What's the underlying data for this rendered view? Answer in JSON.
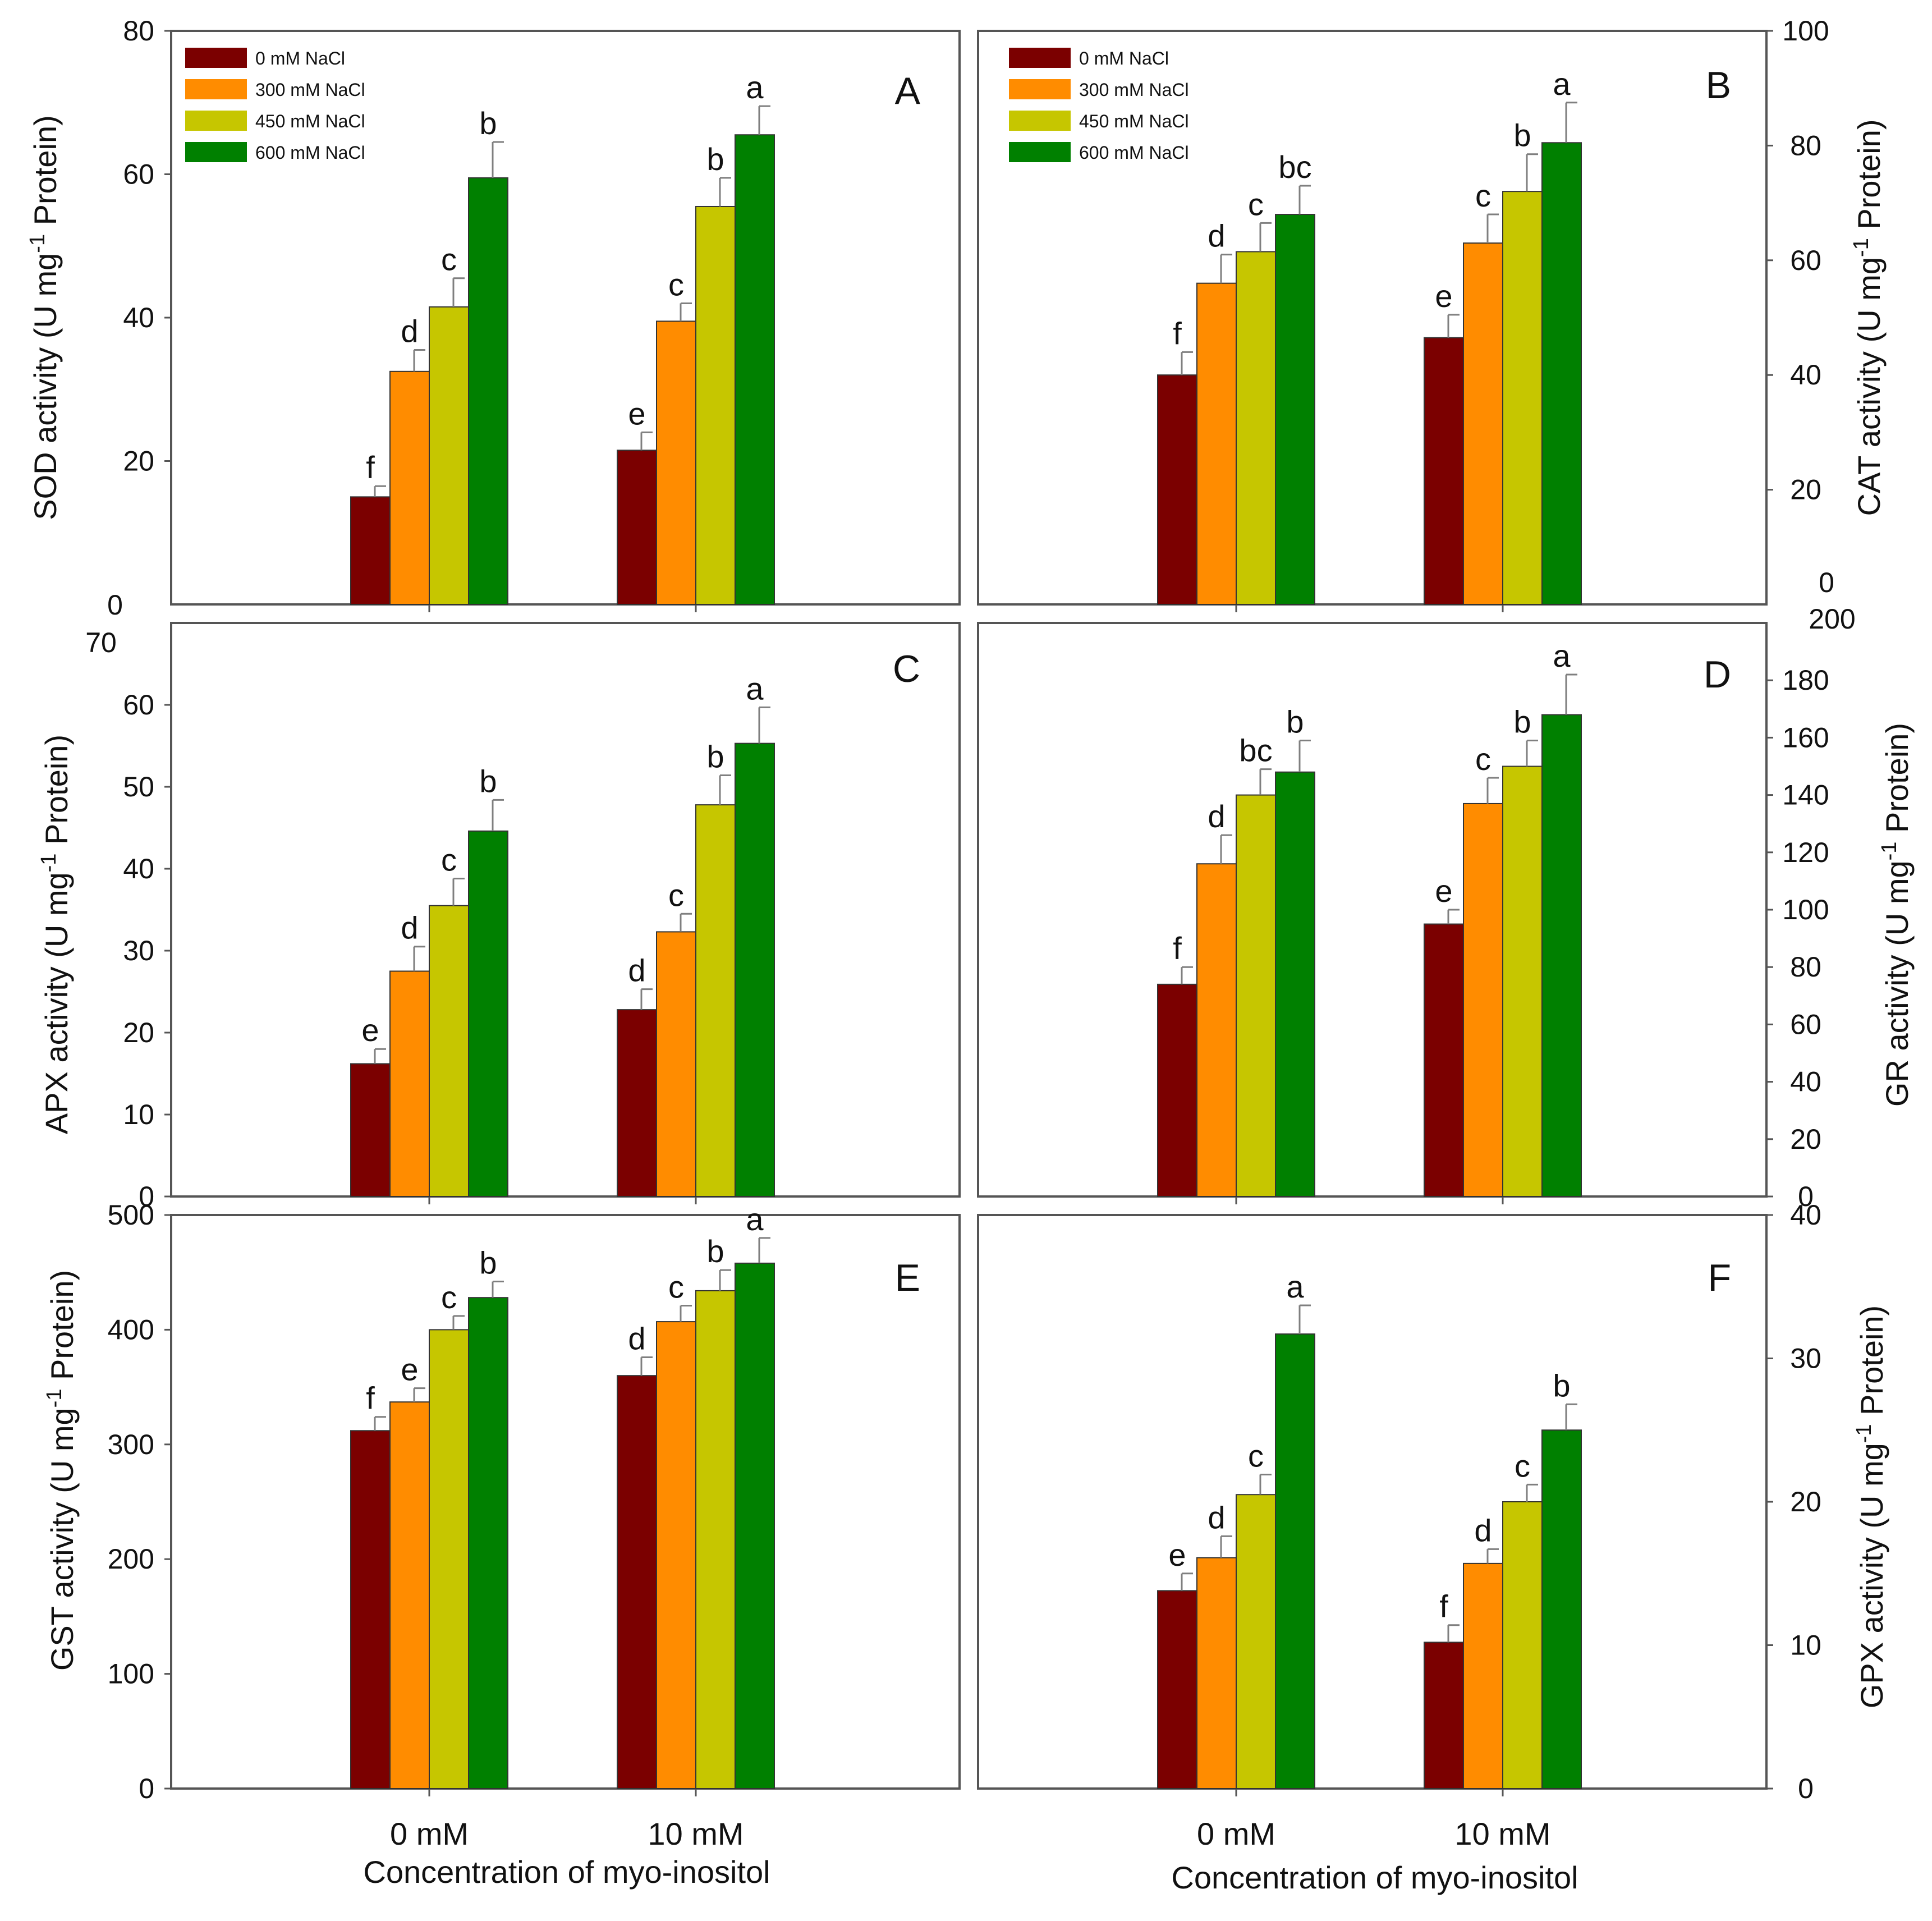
{
  "colors": {
    "series": [
      "#7b0000",
      "#ff8c00",
      "#c6c600",
      "#008000"
    ],
    "frame": "#555555",
    "error_bar": "#7f7f7f"
  },
  "chart_data": [
    {
      "type": "bar",
      "panel": "A",
      "ylabel_prefix": "SOD activity (U mg",
      "ylabel_sup": "-1",
      "ylabel_suffix": " Protein)",
      "ylim": [
        0,
        80
      ],
      "yticks": [
        20,
        40,
        60,
        80
      ],
      "ytick_labels": [
        "20",
        "40",
        "60",
        "80"
      ],
      "axis_side": "left",
      "categories": [
        "0 mM",
        "10 mM"
      ],
      "series": [
        {
          "name": "0 mM NaCl",
          "values": [
            15,
            21.5
          ],
          "errors": [
            1.5,
            2.5
          ],
          "letters": [
            "f",
            "e"
          ]
        },
        {
          "name": "300 mM NaCl",
          "values": [
            32.5,
            39.5
          ],
          "errors": [
            3,
            2.5
          ],
          "letters": [
            "d",
            "c"
          ]
        },
        {
          "name": "450 mM NaCl",
          "values": [
            41.5,
            55.5
          ],
          "errors": [
            4,
            4
          ],
          "letters": [
            "c",
            "b"
          ]
        },
        {
          "name": "600 mM NaCl",
          "values": [
            59.5,
            65.5
          ],
          "errors": [
            5,
            4
          ],
          "letters": [
            "b",
            "a"
          ]
        }
      ],
      "legend": [
        "0 mM NaCl",
        "300 mM NaCl",
        "450 mM NaCl",
        "600 mM NaCl"
      ]
    },
    {
      "type": "bar",
      "panel": "B",
      "ylabel_prefix": "CAT activity (U mg",
      "ylabel_sup": "-1",
      "ylabel_suffix": " Protein)",
      "ylim": [
        0,
        100
      ],
      "yticks": [
        20,
        40,
        60,
        80,
        100
      ],
      "ytick_labels": [
        "20",
        "40",
        "60",
        "80",
        "100"
      ],
      "axis_side": "right",
      "categories": [
        "0 mM",
        "10 mM"
      ],
      "series": [
        {
          "name": "0 mM NaCl",
          "values": [
            40,
            46.5
          ],
          "errors": [
            4,
            4
          ],
          "letters": [
            "f",
            "e"
          ]
        },
        {
          "name": "300 mM NaCl",
          "values": [
            56,
            63
          ],
          "errors": [
            5,
            5
          ],
          "letters": [
            "d",
            "c"
          ]
        },
        {
          "name": "450 mM NaCl",
          "values": [
            61.5,
            72
          ],
          "errors": [
            5,
            6.5
          ],
          "letters": [
            "c",
            "b"
          ]
        },
        {
          "name": "600 mM NaCl",
          "values": [
            68,
            80.5
          ],
          "errors": [
            5,
            7
          ],
          "letters": [
            "bc",
            "a"
          ]
        }
      ],
      "legend": [
        "0 mM NaCl",
        "300 mM NaCl",
        "450 mM NaCl",
        "600 mM NaCl"
      ]
    },
    {
      "type": "bar",
      "panel": "C",
      "ylabel_prefix": "APX activity (U mg",
      "ylabel_sup": "-1",
      "ylabel_suffix": " Protein)",
      "ylim": [
        0,
        70
      ],
      "yticks": [
        0,
        10,
        20,
        30,
        40,
        50,
        60
      ],
      "ytick_labels": [
        "0",
        "10",
        "20",
        "30",
        "40",
        "50",
        "60"
      ],
      "axis_side": "left",
      "categories": [
        "0 mM",
        "10 mM"
      ],
      "series": [
        {
          "name": "0 mM NaCl",
          "values": [
            16.2,
            22.8
          ],
          "errors": [
            1.8,
            2.5
          ],
          "letters": [
            "e",
            "d"
          ]
        },
        {
          "name": "300 mM NaCl",
          "values": [
            27.5,
            32.3
          ],
          "errors": [
            3,
            2.2
          ],
          "letters": [
            "d",
            "c"
          ]
        },
        {
          "name": "450 mM NaCl",
          "values": [
            35.5,
            47.8
          ],
          "errors": [
            3.3,
            3.6
          ],
          "letters": [
            "c",
            "b"
          ]
        },
        {
          "name": "600 mM NaCl",
          "values": [
            44.6,
            55.3
          ],
          "errors": [
            3.8,
            4.4
          ],
          "letters": [
            "b",
            "a"
          ]
        }
      ]
    },
    {
      "type": "bar",
      "panel": "D",
      "ylabel_prefix": "GR activity (U mg",
      "ylabel_sup": "-1",
      "ylabel_suffix": " Protein)",
      "ylim": [
        0,
        200
      ],
      "yticks": [
        0,
        20,
        40,
        60,
        80,
        100,
        120,
        140,
        160,
        180
      ],
      "ytick_labels": [
        "0",
        "20",
        "40",
        "60",
        "80",
        "100",
        "120",
        "140",
        "160",
        "180"
      ],
      "axis_side": "right",
      "categories": [
        "0 mM",
        "10 mM"
      ],
      "series": [
        {
          "name": "0 mM NaCl",
          "values": [
            74,
            95
          ],
          "errors": [
            6,
            5
          ],
          "letters": [
            "f",
            "e"
          ]
        },
        {
          "name": "300 mM NaCl",
          "values": [
            116,
            137
          ],
          "errors": [
            10,
            9
          ],
          "letters": [
            "d",
            "c"
          ]
        },
        {
          "name": "450 mM NaCl",
          "values": [
            140,
            150
          ],
          "errors": [
            9,
            9
          ],
          "letters": [
            "bc",
            "b"
          ]
        },
        {
          "name": "600 mM NaCl",
          "values": [
            148,
            168
          ],
          "errors": [
            11,
            14
          ],
          "letters": [
            "b",
            "a"
          ]
        }
      ]
    },
    {
      "type": "bar",
      "panel": "E",
      "ylabel_prefix": "GST activity (U mg",
      "ylabel_sup": "-1",
      "ylabel_suffix": " Protein)",
      "ylim": [
        0,
        500
      ],
      "yticks": [
        0,
        100,
        200,
        300,
        400,
        500
      ],
      "ytick_labels": [
        "0",
        "100",
        "200",
        "300",
        "400",
        "500"
      ],
      "axis_side": "left",
      "categories": [
        "0 mM",
        "10 mM"
      ],
      "xlabel": "Concentration of myo-inositol",
      "series": [
        {
          "name": "0 mM NaCl",
          "values": [
            312,
            360
          ],
          "errors": [
            12,
            16
          ],
          "letters": [
            "f",
            "d"
          ]
        },
        {
          "name": "300 mM NaCl",
          "values": [
            337,
            407
          ],
          "errors": [
            12,
            14
          ],
          "letters": [
            "e",
            "c"
          ]
        },
        {
          "name": "450 mM NaCl",
          "values": [
            400,
            434
          ],
          "errors": [
            12,
            18
          ],
          "letters": [
            "c",
            "b"
          ]
        },
        {
          "name": "600 mM NaCl",
          "values": [
            428,
            458
          ],
          "errors": [
            14,
            22
          ],
          "letters": [
            "b",
            "a"
          ]
        }
      ]
    },
    {
      "type": "bar",
      "panel": "F",
      "ylabel_prefix": "GPX activity (U mg",
      "ylabel_sup": "-1",
      "ylabel_suffix": " Protein)",
      "ylim": [
        0,
        40
      ],
      "yticks": [
        0,
        10,
        20,
        30,
        40
      ],
      "ytick_labels": [
        "0",
        "10",
        "20",
        "30",
        "40"
      ],
      "axis_side": "right",
      "categories": [
        "0 mM",
        "10 mM"
      ],
      "xlabel": "Concentration of myo-inositol",
      "series": [
        {
          "name": "0 mM NaCl",
          "values": [
            13.8,
            10.2
          ],
          "errors": [
            1.2,
            1.2
          ],
          "letters": [
            "e",
            "f"
          ]
        },
        {
          "name": "300 mM NaCl",
          "values": [
            16.1,
            15.7
          ],
          "errors": [
            1.5,
            1
          ],
          "letters": [
            "d",
            "d"
          ]
        },
        {
          "name": "450 mM NaCl",
          "values": [
            20.5,
            20
          ],
          "errors": [
            1.4,
            1.2
          ],
          "letters": [
            "c",
            "c"
          ]
        },
        {
          "name": "600 mM NaCl",
          "values": [
            31.7,
            25
          ],
          "errors": [
            2,
            1.8
          ],
          "letters": [
            "a",
            "b"
          ]
        }
      ]
    }
  ],
  "stray_labels": [
    "0",
    "70",
    "0",
    "200"
  ]
}
